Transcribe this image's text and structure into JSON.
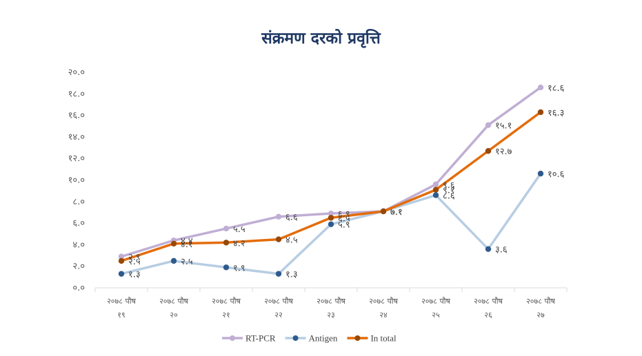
{
  "chart_data": {
    "type": "line",
    "title": "संक्रमण दरको प्रवृत्ति",
    "categories": [
      [
        "२०७८ पौष",
        "१९"
      ],
      [
        "२०७८ पौष",
        "२०"
      ],
      [
        "२०७८ पौष",
        "२१"
      ],
      [
        "२०७८ पौष",
        "२२"
      ],
      [
        "२०७८ पौष",
        "२३"
      ],
      [
        "२०७८ पौष",
        "२४"
      ],
      [
        "२०७८ पौष",
        "२५"
      ],
      [
        "२०७८ पौष",
        "२६"
      ],
      [
        "२०७८ पौष",
        "२७"
      ]
    ],
    "ylim": [
      0,
      20
    ],
    "yticks": [
      0,
      2,
      4,
      6,
      8,
      10,
      12,
      14,
      16,
      18,
      20
    ],
    "ytick_labels": [
      "०.०",
      "२.०",
      "४.०",
      "६.०",
      "८.०",
      "१०.०",
      "१२.०",
      "१४.०",
      "१६.०",
      "१८.०",
      "२०.०"
    ],
    "grid": false,
    "legend_position": "bottom",
    "series": [
      {
        "name": "RT-PCR",
        "color": "#c0aed4",
        "values": [
          2.9,
          4.4,
          5.5,
          6.6,
          6.9,
          7.1,
          9.6,
          15.1,
          18.6
        ],
        "labels": [
          "२.९",
          "४.४",
          "५.५",
          "६.६",
          "६.९",
          "७.१",
          "९.६",
          "१५.१",
          "१८.६"
        ]
      },
      {
        "name": "Antigen",
        "color": "#b7cde3",
        "marker_color": "#2e5b8c",
        "values": [
          1.3,
          2.5,
          1.9,
          1.3,
          5.9,
          7.1,
          8.6,
          3.6,
          10.6
        ],
        "labels": [
          "१.३",
          "२.५",
          "१.९",
          "१.३",
          "५.९",
          "",
          "८.६",
          "३.६",
          "१०.६"
        ]
      },
      {
        "name": "In total",
        "color": "#e46c0a",
        "marker_color": "#984807",
        "values": [
          2.5,
          4.1,
          4.2,
          4.5,
          6.5,
          7.1,
          9.1,
          12.7,
          16.3
        ],
        "labels": [
          "२.५",
          "४.१",
          "४.२",
          "४.५",
          "६.५",
          "७.१",
          "९.१",
          "१२.७",
          "१६.३"
        ]
      }
    ]
  }
}
